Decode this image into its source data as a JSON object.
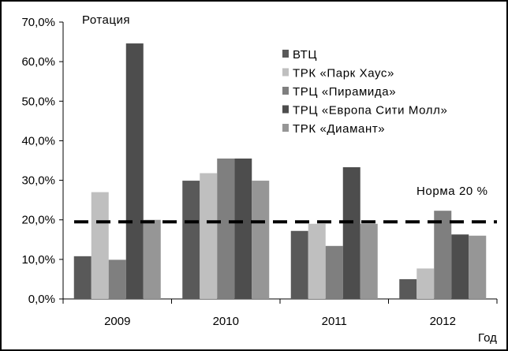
{
  "chart_data": {
    "type": "bar",
    "title": "",
    "ylabel": "Ротация",
    "xlabel": "Год",
    "categories": [
      "2009",
      "2010",
      "2011",
      "2012"
    ],
    "ylim": [
      0,
      70
    ],
    "yticks": [
      0,
      10,
      20,
      30,
      40,
      50,
      60,
      70
    ],
    "ytick_labels": [
      "0,0%",
      "10,0%",
      "20,0%",
      "30,0%",
      "40,0%",
      "50,0%",
      "60,0%",
      "70,0%"
    ],
    "grid": false,
    "legend_position": "top-right",
    "series": [
      {
        "name": "ВТЦ",
        "color": "#595959",
        "values": [
          10.8,
          29.9,
          17.2,
          5.0
        ]
      },
      {
        "name": "ТРК «Парк Хаус»",
        "color": "#bfbfbf",
        "values": [
          27.0,
          31.8,
          19.0,
          7.7
        ]
      },
      {
        "name": "ТРЦ «Пирамида»",
        "color": "#7f7f7f",
        "values": [
          9.9,
          35.5,
          13.4,
          22.3
        ]
      },
      {
        "name": "ТРЦ «Европа Сити Молл»",
        "color": "#4d4d4d",
        "values": [
          64.6,
          35.5,
          33.3,
          16.3
        ]
      },
      {
        "name": "ТРК «Диамант»",
        "color": "#969696",
        "values": [
          20.0,
          29.9,
          19.0,
          16.0
        ]
      }
    ],
    "reference_line": {
      "value": 19.5,
      "label": "Норма 20 %",
      "style": "dashed"
    }
  }
}
